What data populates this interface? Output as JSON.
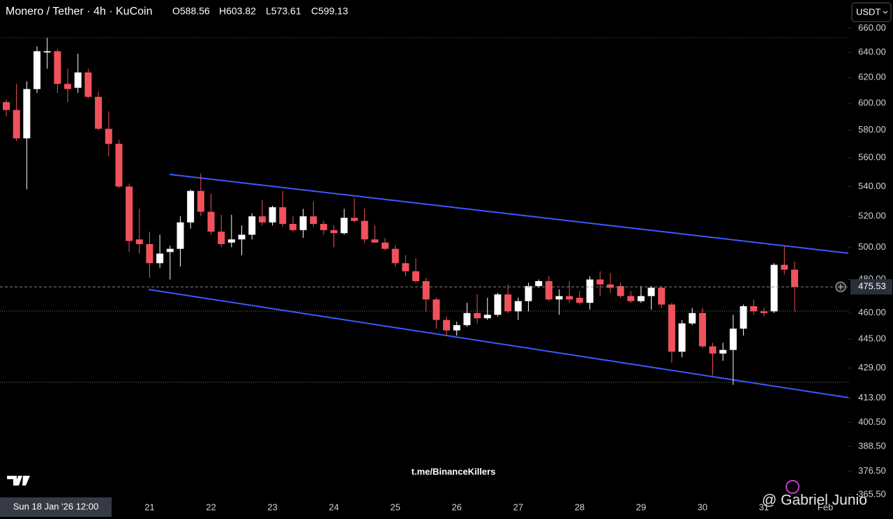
{
  "header": {
    "symbol": "Monero / Tether · 4h · KuCoin",
    "ohlc": [
      "O588.56",
      "H603.82",
      "L573.61",
      "C599.13"
    ],
    "currency_button": "USDT"
  },
  "crosshair_time": "Sun 18 Jan '26 12:00",
  "watermarks": [
    "t.me/BinanceKillers",
    "@ Gabriel Junio"
  ],
  "chart_data": {
    "type": "candlestick",
    "log": true,
    "up_color": "#ffffff",
    "down_color": "#f0525c",
    "categories": [
      null,
      null,
      null,
      null,
      null,
      null,
      null,
      null,
      null,
      null,
      null,
      null,
      null,
      null,
      "21",
      null,
      null,
      null,
      null,
      null,
      "22",
      null,
      null,
      null,
      null,
      null,
      "23",
      null,
      null,
      null,
      null,
      null,
      "24",
      null,
      null,
      null,
      null,
      null,
      "25",
      null,
      null,
      null,
      null,
      null,
      "26",
      null,
      null,
      null,
      null,
      null,
      "27",
      null,
      null,
      null,
      null,
      null,
      "28",
      null,
      null,
      null,
      null,
      null,
      "29",
      null,
      null,
      null,
      null,
      null,
      "30",
      null,
      null,
      null,
      null,
      null,
      "31",
      null,
      null,
      null,
      null,
      null,
      "Feb"
    ],
    "open": [
      601,
      595,
      574,
      611,
      640,
      641,
      615,
      612,
      624,
      605,
      581,
      570,
      540,
      505,
      502,
      490,
      497,
      499,
      516,
      537,
      523,
      510,
      503,
      505,
      508,
      520,
      516,
      526,
      515,
      511,
      520,
      515,
      511,
      509,
      519,
      517,
      505,
      503,
      499,
      490,
      485,
      479,
      468,
      456,
      450,
      453,
      460,
      457,
      459,
      471,
      461,
      467,
      476,
      479,
      468,
      470,
      469,
      466,
      480,
      477,
      476,
      470,
      467,
      470,
      475,
      465,
      438,
      454,
      460,
      441,
      437,
      439,
      451,
      464,
      461,
      461,
      489,
      486,
      null,
      null,
      null
    ],
    "high": [
      603,
      615,
      617,
      645,
      652,
      643,
      627,
      639,
      627,
      609,
      594,
      573,
      542,
      525,
      510,
      508,
      501,
      520,
      538,
      549,
      535,
      521,
      521,
      514,
      522,
      531,
      527,
      537,
      520,
      525,
      530,
      517,
      514,
      525,
      532,
      525,
      514,
      506,
      501,
      495,
      493,
      481,
      469,
      458,
      455,
      466,
      471,
      469,
      472,
      477,
      469,
      478,
      480,
      482,
      474,
      479,
      473,
      482,
      485,
      484,
      478,
      473,
      476,
      476,
      476,
      466,
      456,
      463,
      463,
      443,
      443,
      459,
      465,
      468,
      463,
      490,
      501,
      491,
      null,
      null,
      null
    ],
    "low": [
      590,
      572,
      538,
      608,
      627,
      608,
      601,
      608,
      604,
      580,
      561,
      539,
      497,
      496,
      481,
      487,
      480,
      488,
      512,
      520,
      508,
      500,
      500,
      495,
      505,
      514,
      514,
      513,
      510,
      506,
      513,
      508,
      500,
      508,
      516,
      503,
      503,
      498,
      488,
      482,
      478,
      461,
      451,
      447,
      447,
      452,
      454,
      456,
      458,
      460,
      456,
      461,
      475,
      467,
      459,
      466,
      465,
      462,
      470,
      472,
      469,
      466,
      466,
      462,
      463,
      432,
      435,
      453,
      440,
      425,
      433,
      420,
      447,
      459,
      458,
      460,
      483,
      461,
      null,
      null,
      null
    ],
    "close": [
      595,
      574,
      611,
      641,
      641,
      615,
      611,
      624,
      605,
      581,
      570,
      540,
      504,
      502,
      490,
      496,
      499,
      516,
      537,
      523,
      510,
      502,
      505,
      508,
      520,
      516,
      526,
      515,
      511,
      520,
      515,
      511,
      509,
      519,
      517,
      505,
      503,
      499,
      490,
      485,
      479,
      468,
      456,
      450,
      453,
      460,
      457,
      459,
      471,
      461,
      467,
      476,
      479,
      468,
      470,
      468,
      466,
      480,
      477,
      475,
      470,
      467,
      470,
      475,
      465,
      438,
      454,
      460,
      441,
      437,
      439,
      451,
      464,
      461,
      460,
      489,
      486,
      475.53,
      null,
      null,
      null
    ],
    "last_price": 475.53,
    "ylim": [
      364.5,
      684
    ],
    "yticks": [
      {
        "value": 660,
        "label": "660.00"
      },
      {
        "value": 640,
        "label": "640.00"
      },
      {
        "value": 620,
        "label": "620.00"
      },
      {
        "value": 600,
        "label": "600.00"
      },
      {
        "value": 580,
        "label": "580.00"
      },
      {
        "value": 560,
        "label": "560.00"
      },
      {
        "value": 540,
        "label": "540.00"
      },
      {
        "value": 520,
        "label": "520.00"
      },
      {
        "value": 500,
        "label": "500.00"
      },
      {
        "value": 480,
        "label": "480.00"
      },
      {
        "value": 460,
        "label": "460.00"
      },
      {
        "value": 445,
        "label": "445.00"
      },
      {
        "value": 429,
        "label": "429.00"
      },
      {
        "value": 413,
        "label": "413.00"
      },
      {
        "value": 400.5,
        "label": "400.50"
      },
      {
        "value": 388.5,
        "label": "388.50"
      },
      {
        "value": 376.5,
        "label": "376.50"
      },
      {
        "value": 365.5,
        "label": "365.50"
      }
    ]
  }
}
